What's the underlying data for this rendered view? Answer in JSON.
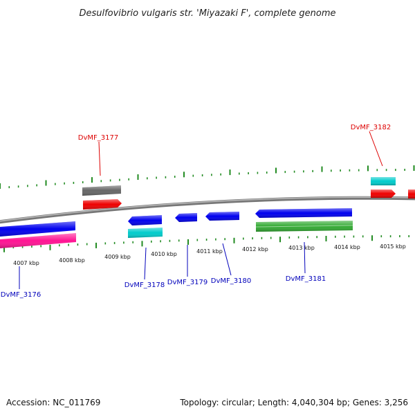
{
  "header": {
    "title": "Desulfovibrio vulgaris str. 'Miyazaki F', complete genome"
  },
  "footer": {
    "accession": "Accession: NC_011769",
    "summary": "Topology: circular; Length: 4,040,304 bp; Genes: 3,256"
  },
  "colors": {
    "backbone": "#888888",
    "tick": "#228b22",
    "forward_label": "#dd0000",
    "reverse_label": "#0000bb",
    "blue": "#0000ee",
    "cyan": "#00cccc",
    "red": "#ee0000",
    "gray": "#666666",
    "pink": "#ff1493",
    "green": "#33aa33"
  },
  "axis": {
    "unit": "kbp",
    "labels": [
      "4007 kbp",
      "4008 kbp",
      "4009 kbp",
      "4010 kbp",
      "4011 kbp",
      "4012 kbp",
      "4013 kbp",
      "4014 kbp",
      "4015 kbp"
    ]
  },
  "genes": [
    {
      "label": "DvMF_3176",
      "strand": "reverse"
    },
    {
      "label": "DvMF_3177",
      "strand": "forward"
    },
    {
      "label": "DvMF_3178",
      "strand": "reverse"
    },
    {
      "label": "DvMF_3179",
      "strand": "reverse"
    },
    {
      "label": "DvMF_3180",
      "strand": "reverse"
    },
    {
      "label": "DvMF_3181",
      "strand": "reverse"
    },
    {
      "label": "DvMF_3182",
      "strand": "forward"
    }
  ]
}
